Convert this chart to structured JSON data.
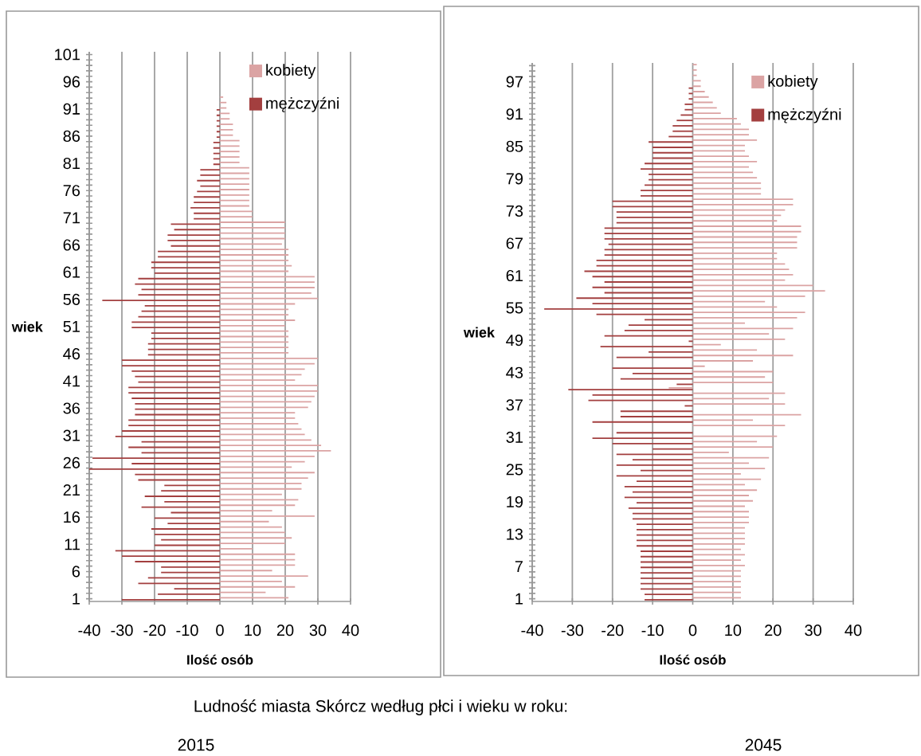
{
  "chart_data": [
    {
      "type": "bar",
      "orientation": "horizontal",
      "xlabel": "Ilość osób",
      "ylabel": "wiek",
      "grid": "x",
      "legend": "top right",
      "xlim": [
        -40,
        40
      ],
      "xticks": [
        -40,
        -30,
        -20,
        -10,
        0,
        10,
        20,
        30,
        40
      ],
      "annotations": [
        "Ludność miasta Skórcz według płci i wieku w roku:",
        "2015"
      ],
      "categories": [
        "101",
        null,
        null,
        null,
        null,
        "96",
        null,
        null,
        null,
        null,
        "91",
        null,
        null,
        null,
        null,
        "86",
        null,
        null,
        null,
        null,
        "81",
        null,
        null,
        null,
        null,
        "76",
        null,
        null,
        null,
        null,
        "71",
        null,
        null,
        null,
        null,
        "66",
        null,
        null,
        null,
        null,
        "61",
        null,
        null,
        null,
        null,
        "56",
        null,
        null,
        null,
        null,
        "51",
        null,
        null,
        null,
        null,
        "46",
        null,
        null,
        null,
        null,
        "41",
        null,
        null,
        null,
        null,
        "36",
        null,
        null,
        null,
        null,
        "31",
        null,
        null,
        null,
        null,
        "26",
        null,
        null,
        null,
        null,
        "21",
        null,
        null,
        null,
        null,
        "16",
        null,
        null,
        null,
        null,
        "11",
        null,
        null,
        null,
        null,
        "6",
        null,
        null,
        null,
        null,
        "1"
      ],
      "series": [
        {
          "name": "kobiety",
          "color": "#dba3a3",
          "values": [
            0,
            0,
            0,
            0,
            0,
            0,
            0,
            0,
            1,
            2,
            2,
            3,
            3,
            4,
            4,
            4,
            6,
            6,
            6,
            6,
            6,
            9,
            9,
            9,
            9,
            9,
            9,
            9,
            9,
            10,
            10,
            20,
            20,
            20,
            20,
            19,
            21,
            21,
            21,
            22,
            21,
            29,
            29,
            29,
            28,
            30,
            23,
            21,
            21,
            23,
            20,
            21,
            21,
            21,
            21,
            21,
            30,
            29,
            26,
            25,
            23,
            30,
            30,
            29,
            28,
            27,
            23,
            23,
            24,
            25,
            26,
            28,
            31,
            34,
            29,
            26,
            22,
            29,
            27,
            25,
            25,
            19,
            24,
            23,
            16,
            29,
            15,
            19,
            20,
            22,
            20,
            10,
            23,
            23,
            23,
            16,
            27,
            19,
            23,
            14,
            21
          ]
        },
        {
          "name": "mężczyźni",
          "color": "#a33f3f",
          "values": [
            0,
            0,
            0,
            0,
            0,
            0,
            0,
            0,
            0,
            0,
            -1,
            -1,
            -1,
            -1,
            -1,
            -1,
            -2,
            -2,
            -2,
            -2,
            -2,
            -6,
            -6,
            -7,
            -6,
            -7,
            -8,
            -8,
            -9,
            -8,
            -8,
            -15,
            -14,
            -16,
            -16,
            -15,
            -19,
            -19,
            -21,
            -21,
            -20,
            -25,
            -26,
            -24,
            -25,
            -36,
            -23,
            -24,
            -25,
            -27,
            -27,
            -21,
            -21,
            -22,
            -22,
            -22,
            -30,
            -30,
            -27,
            -26,
            -25,
            -28,
            -28,
            -27,
            -26,
            -26,
            -26,
            -28,
            -28,
            -30,
            -32,
            -24,
            -28,
            -24,
            -39,
            -27,
            -40,
            -26,
            -25,
            -17,
            -18,
            -23,
            -17,
            -24,
            -15,
            -20,
            -16,
            -21,
            -20,
            -18,
            -20,
            -32,
            -30,
            -26,
            -18,
            -18,
            -22,
            -25,
            -14,
            -19,
            -30
          ]
        }
      ]
    },
    {
      "type": "bar",
      "orientation": "horizontal",
      "xlabel": "Ilość osób",
      "ylabel": "wiek",
      "grid": "x",
      "legend": "top right",
      "xlim": [
        -40,
        40
      ],
      "xticks": [
        -40,
        -30,
        -20,
        -10,
        0,
        10,
        20,
        30,
        40
      ],
      "annotations": [
        "2045"
      ],
      "categories": [
        null,
        null,
        null,
        "97",
        null,
        null,
        null,
        null,
        null,
        "91",
        null,
        null,
        null,
        null,
        null,
        "85",
        null,
        null,
        null,
        null,
        null,
        "79",
        null,
        null,
        null,
        null,
        null,
        "73",
        null,
        null,
        null,
        null,
        null,
        "67",
        null,
        null,
        null,
        null,
        null,
        "61",
        null,
        null,
        null,
        null,
        null,
        "55",
        null,
        null,
        null,
        null,
        null,
        "49",
        null,
        null,
        null,
        null,
        null,
        "43",
        null,
        null,
        null,
        null,
        null,
        "37",
        null,
        null,
        null,
        null,
        null,
        "31",
        null,
        null,
        null,
        null,
        null,
        "25",
        null,
        null,
        null,
        null,
        null,
        "19",
        null,
        null,
        null,
        null,
        null,
        "13",
        null,
        null,
        null,
        null,
        null,
        "7",
        null,
        null,
        null,
        null,
        null,
        "1"
      ],
      "series": [
        {
          "name": "kobiety",
          "color": "#dba3a3",
          "values": [
            1,
            1,
            1,
            2,
            2,
            3,
            4,
            5,
            6,
            7,
            11,
            12,
            14,
            14,
            16,
            13,
            13,
            14,
            16,
            14,
            15,
            16,
            17,
            17,
            17,
            25,
            25,
            23,
            22,
            21,
            27,
            27,
            26,
            26,
            26,
            21,
            21,
            23,
            24,
            25,
            23,
            30,
            33,
            28,
            18,
            21,
            28,
            26,
            13,
            25,
            19,
            23,
            7,
            16,
            25,
            15,
            3,
            20,
            18,
            20,
            -6,
            23,
            19,
            23,
            0,
            27,
            15,
            23,
            0,
            21,
            16,
            20,
            9,
            19,
            14,
            18,
            12,
            17,
            13,
            16,
            14,
            15,
            13,
            14,
            14,
            14,
            13,
            13,
            13,
            13,
            12,
            13,
            12,
            13,
            12,
            12,
            12,
            12,
            12,
            12
          ]
        },
        {
          "name": "mężczyźni",
          "color": "#a33f3f",
          "values": [
            0,
            0,
            0,
            0,
            -1,
            -1,
            -1,
            -2,
            -2,
            -3,
            -4,
            -5,
            -5,
            -6,
            -11,
            -10,
            -10,
            -10,
            -12,
            -13,
            -11,
            -11,
            -12,
            -13,
            -13,
            -20,
            -20,
            -19,
            -19,
            -19,
            -22,
            -22,
            -22,
            -21,
            -22,
            -22,
            -24,
            -24,
            -27,
            -25,
            -22,
            -25,
            -22,
            -29,
            -25,
            -37,
            -24,
            -12,
            -16,
            -17,
            -22,
            -1,
            -23,
            -11,
            -19,
            0,
            -20,
            -15,
            -18,
            -4,
            -31,
            -25,
            -26,
            -2,
            -18,
            -18,
            -25,
            0,
            -19,
            -25,
            -20,
            -10,
            -19,
            -15,
            -19,
            -13,
            -19,
            -14,
            -17,
            -15,
            -17,
            -14,
            -16,
            -15,
            -15,
            -14,
            -14,
            -14,
            -14,
            -14,
            -13,
            -13,
            -13,
            -13,
            -13,
            -13,
            -13,
            -13,
            -12,
            -12
          ]
        }
      ]
    }
  ]
}
